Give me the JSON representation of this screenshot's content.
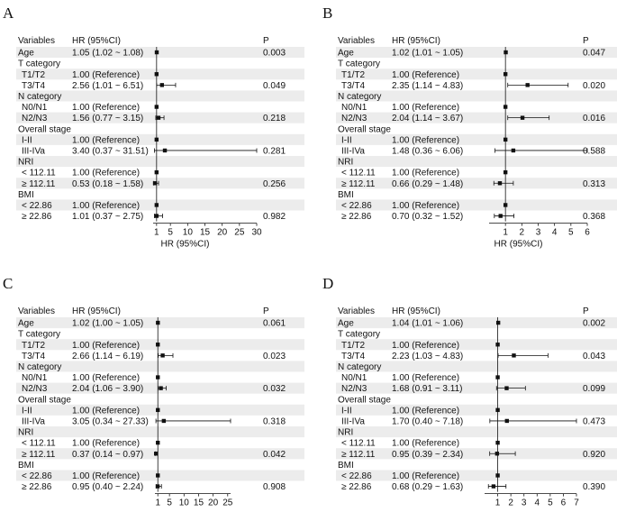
{
  "chart_data": [
    {
      "type": "forest",
      "panel_label": "A",
      "headers": {
        "variables": "Variables",
        "hr": "HR (95%CI)",
        "p": "P"
      },
      "xlabel": "HR (95%CI)",
      "reference_line": 1,
      "xlim": [
        0,
        30
      ],
      "xticks": [
        1,
        5,
        10,
        15,
        20,
        25,
        30
      ],
      "rows": [
        {
          "label": "Age",
          "hr_text": "1.05 (1.02 ~ 1.08)",
          "p": "0.003",
          "hr": 1.05,
          "lo": 1.02,
          "hi": 1.08,
          "shaded": true
        },
        {
          "label": "T category",
          "header": true
        },
        {
          "label": "T1/T2",
          "indent": true,
          "hr_text": "1.00 (Reference)",
          "hr": 1.0,
          "shaded": true
        },
        {
          "label": "T3/T4",
          "indent": true,
          "hr_text": "2.56 (1.01 ~ 6.51)",
          "p": "0.049",
          "hr": 2.56,
          "lo": 1.01,
          "hi": 6.51
        },
        {
          "label": "N category",
          "header": true,
          "shaded": true
        },
        {
          "label": "N0/N1",
          "indent": true,
          "hr_text": "1.00 (Reference)",
          "hr": 1.0
        },
        {
          "label": "N2/N3",
          "indent": true,
          "hr_text": "1.56 (0.77 ~ 3.15)",
          "p": "0.218",
          "hr": 1.56,
          "lo": 0.77,
          "hi": 3.15,
          "shaded": true
        },
        {
          "label": "Overall stage",
          "header": true
        },
        {
          "label": "I-II",
          "indent": true,
          "hr_text": "1.00 (Reference)",
          "hr": 1.0,
          "shaded": true
        },
        {
          "label": "III-IVa",
          "indent": true,
          "hr_text": "3.40 (0.37 ~ 31.51)",
          "p": "0.281",
          "hr": 3.4,
          "lo": 0.37,
          "hi": 31.51
        },
        {
          "label": "NRI",
          "header": true,
          "shaded": true
        },
        {
          "label": "< 112.11",
          "indent": true,
          "hr_text": "1.00 (Reference)",
          "hr": 1.0
        },
        {
          "label": "≥ 112.11",
          "indent": true,
          "hr_text": "0.53 (0.18 ~ 1.58)",
          "p": "0.256",
          "hr": 0.53,
          "lo": 0.18,
          "hi": 1.58,
          "shaded": true
        },
        {
          "label": "BMI",
          "header": true
        },
        {
          "label": "< 22.86",
          "indent": true,
          "hr_text": "1.00 (Reference)",
          "hr": 1.0,
          "shaded": true
        },
        {
          "label": "≥ 22.86",
          "indent": true,
          "hr_text": "1.01 (0.37 ~ 2.75)",
          "p": "0.982",
          "hr": 1.01,
          "lo": 0.37,
          "hi": 2.75
        }
      ]
    },
    {
      "type": "forest",
      "panel_label": "B",
      "headers": {
        "variables": "Variables",
        "hr": "HR (95%CI)",
        "p": "P"
      },
      "xlabel": "HR (95%CI)",
      "reference_line": 1,
      "xlim": [
        0,
        6
      ],
      "xticks": [
        1,
        2,
        3,
        4,
        5,
        6
      ],
      "rows": [
        {
          "label": "Age",
          "hr_text": "1.02 (1.01 ~ 1.05)",
          "p": "0.047",
          "hr": 1.02,
          "lo": 1.01,
          "hi": 1.05,
          "shaded": true
        },
        {
          "label": "T category",
          "header": true
        },
        {
          "label": "T1/T2",
          "indent": true,
          "hr_text": "1.00 (Reference)",
          "hr": 1.0,
          "shaded": true
        },
        {
          "label": "T3/T4",
          "indent": true,
          "hr_text": "2.35 (1.14 ~ 4.83)",
          "p": "0.020",
          "hr": 2.35,
          "lo": 1.14,
          "hi": 4.83
        },
        {
          "label": "N category",
          "header": true,
          "shaded": true
        },
        {
          "label": "N0/N1",
          "indent": true,
          "hr_text": "1.00 (Reference)",
          "hr": 1.0
        },
        {
          "label": "N2/N3",
          "indent": true,
          "hr_text": "2.04 (1.14 ~ 3.67)",
          "p": "0.016",
          "hr": 2.04,
          "lo": 1.14,
          "hi": 3.67,
          "shaded": true
        },
        {
          "label": "Overall stage",
          "header": true
        },
        {
          "label": "I-II",
          "indent": true,
          "hr_text": "1.00 (Reference)",
          "hr": 1.0,
          "shaded": true
        },
        {
          "label": "III-IVa",
          "indent": true,
          "hr_text": "1.48 (0.36 ~ 6.06)",
          "p": "0.588",
          "hr": 1.48,
          "lo": 0.36,
          "hi": 6.06
        },
        {
          "label": "NRI",
          "header": true,
          "shaded": true
        },
        {
          "label": "< 112.11",
          "indent": true,
          "hr_text": "1.00 (Reference)",
          "hr": 1.0
        },
        {
          "label": "≥ 112.11",
          "indent": true,
          "hr_text": "0.66 (0.29 ~ 1.48)",
          "p": "0.313",
          "hr": 0.66,
          "lo": 0.29,
          "hi": 1.48,
          "shaded": true
        },
        {
          "label": "BMI",
          "header": true
        },
        {
          "label": "< 22.86",
          "indent": true,
          "hr_text": "1.00 (Reference)",
          "hr": 1.0,
          "shaded": true
        },
        {
          "label": "≥ 22.86",
          "indent": true,
          "hr_text": "0.70 (0.32 ~ 1.52)",
          "p": "0.368",
          "hr": 0.7,
          "lo": 0.32,
          "hi": 1.52
        }
      ]
    },
    {
      "type": "forest",
      "panel_label": "C",
      "headers": {
        "variables": "Variables",
        "hr": "HR (95%CI)",
        "p": "P"
      },
      "xlabel": "HR (95%CI)",
      "reference_line": 1,
      "xlim": [
        0,
        26
      ],
      "xticks": [
        1,
        5,
        10,
        15,
        20,
        25
      ],
      "rows": [
        {
          "label": "Age",
          "hr_text": "1.02 (1.00 ~ 1.05)",
          "p": "0.061",
          "hr": 1.02,
          "lo": 1.0,
          "hi": 1.05,
          "shaded": true
        },
        {
          "label": "T category",
          "header": true
        },
        {
          "label": "T1/T2",
          "indent": true,
          "hr_text": "1.00 (Reference)",
          "hr": 1.0,
          "shaded": true
        },
        {
          "label": "T3/T4",
          "indent": true,
          "hr_text": "2.66 (1.14 ~ 6.19)",
          "p": "0.023",
          "hr": 2.66,
          "lo": 1.14,
          "hi": 6.19
        },
        {
          "label": "N category",
          "header": true,
          "shaded": true
        },
        {
          "label": "N0/N1",
          "indent": true,
          "hr_text": "1.00 (Reference)",
          "hr": 1.0
        },
        {
          "label": "N2/N3",
          "indent": true,
          "hr_text": "2.04 (1.06 ~ 3.90)",
          "p": "0.032",
          "hr": 2.04,
          "lo": 1.06,
          "hi": 3.9,
          "shaded": true
        },
        {
          "label": "Overall stage",
          "header": true
        },
        {
          "label": "I-II",
          "indent": true,
          "hr_text": "1.00 (Reference)",
          "hr": 1.0,
          "shaded": true
        },
        {
          "label": "III-IVa",
          "indent": true,
          "hr_text": "3.05 (0.34 ~ 27.33)",
          "p": "0.318",
          "hr": 3.05,
          "lo": 0.34,
          "hi": 27.33
        },
        {
          "label": "NRI",
          "header": true,
          "shaded": true
        },
        {
          "label": "< 112.11",
          "indent": true,
          "hr_text": "1.00 (Reference)",
          "hr": 1.0
        },
        {
          "label": "≥ 112.11",
          "indent": true,
          "hr_text": "0.37 (0.14 ~ 0.97)",
          "p": "0.042",
          "hr": 0.37,
          "lo": 0.14,
          "hi": 0.97,
          "shaded": true
        },
        {
          "label": "BMI",
          "header": true
        },
        {
          "label": "< 22.86",
          "indent": true,
          "hr_text": "1.00 (Reference)",
          "hr": 1.0,
          "shaded": true
        },
        {
          "label": "≥ 22.86",
          "indent": true,
          "hr_text": "0.95 (0.40 ~ 2.24)",
          "p": "0.908",
          "hr": 0.95,
          "lo": 0.4,
          "hi": 2.24
        }
      ]
    },
    {
      "type": "forest",
      "panel_label": "D",
      "headers": {
        "variables": "Variables",
        "hr": "HR (95%CI)",
        "p": "P"
      },
      "xlabel": "HR (95%CI)",
      "reference_line": 1,
      "xlim": [
        0,
        7
      ],
      "xticks": [
        1,
        2,
        3,
        4,
        5,
        6,
        7
      ],
      "rows": [
        {
          "label": "Age",
          "hr_text": "1.04 (1.01 ~ 1.06)",
          "p": "0.002",
          "hr": 1.04,
          "lo": 1.01,
          "hi": 1.06,
          "shaded": true
        },
        {
          "label": "T category",
          "header": true
        },
        {
          "label": "T1/T2",
          "indent": true,
          "hr_text": "1.00 (Reference)",
          "hr": 1.0,
          "shaded": true
        },
        {
          "label": "T3/T4",
          "indent": true,
          "hr_text": "2.23 (1.03 ~ 4.83)",
          "p": "0.043",
          "hr": 2.23,
          "lo": 1.03,
          "hi": 4.83
        },
        {
          "label": "N category",
          "header": true,
          "shaded": true
        },
        {
          "label": "N0/N1",
          "indent": true,
          "hr_text": "1.00 (Reference)",
          "hr": 1.0
        },
        {
          "label": "N2/N3",
          "indent": true,
          "hr_text": "1.68 (0.91 ~ 3.11)",
          "p": "0.099",
          "hr": 1.68,
          "lo": 0.91,
          "hi": 3.11,
          "shaded": true
        },
        {
          "label": "Overall stage",
          "header": true
        },
        {
          "label": "I-II",
          "indent": true,
          "hr_text": "1.00 (Reference)",
          "hr": 1.0,
          "shaded": true
        },
        {
          "label": "III-IVa",
          "indent": true,
          "hr_text": "1.70 (0.40 ~ 7.18)",
          "p": "0.473",
          "hr": 1.7,
          "lo": 0.4,
          "hi": 7.18
        },
        {
          "label": "NRI",
          "header": true,
          "shaded": true
        },
        {
          "label": "< 112.11",
          "indent": true,
          "hr_text": "1.00 (Reference)",
          "hr": 1.0
        },
        {
          "label": "≥ 112.11",
          "indent": true,
          "hr_text": "0.95 (0.39 ~ 2.34)",
          "p": "0.920",
          "hr": 0.95,
          "lo": 0.39,
          "hi": 2.34,
          "shaded": true
        },
        {
          "label": "BMI",
          "header": true
        },
        {
          "label": "< 22.86",
          "indent": true,
          "hr_text": "1.00 (Reference)",
          "hr": 1.0,
          "shaded": true
        },
        {
          "label": "≥ 22.86",
          "indent": true,
          "hr_text": "0.68 (0.29 ~ 1.63)",
          "p": "0.390",
          "hr": 0.68,
          "lo": 0.29,
          "hi": 1.63
        }
      ]
    }
  ],
  "colors": {
    "stripe": "#ececec",
    "ink": "#111111",
    "background": "#ffffff"
  }
}
